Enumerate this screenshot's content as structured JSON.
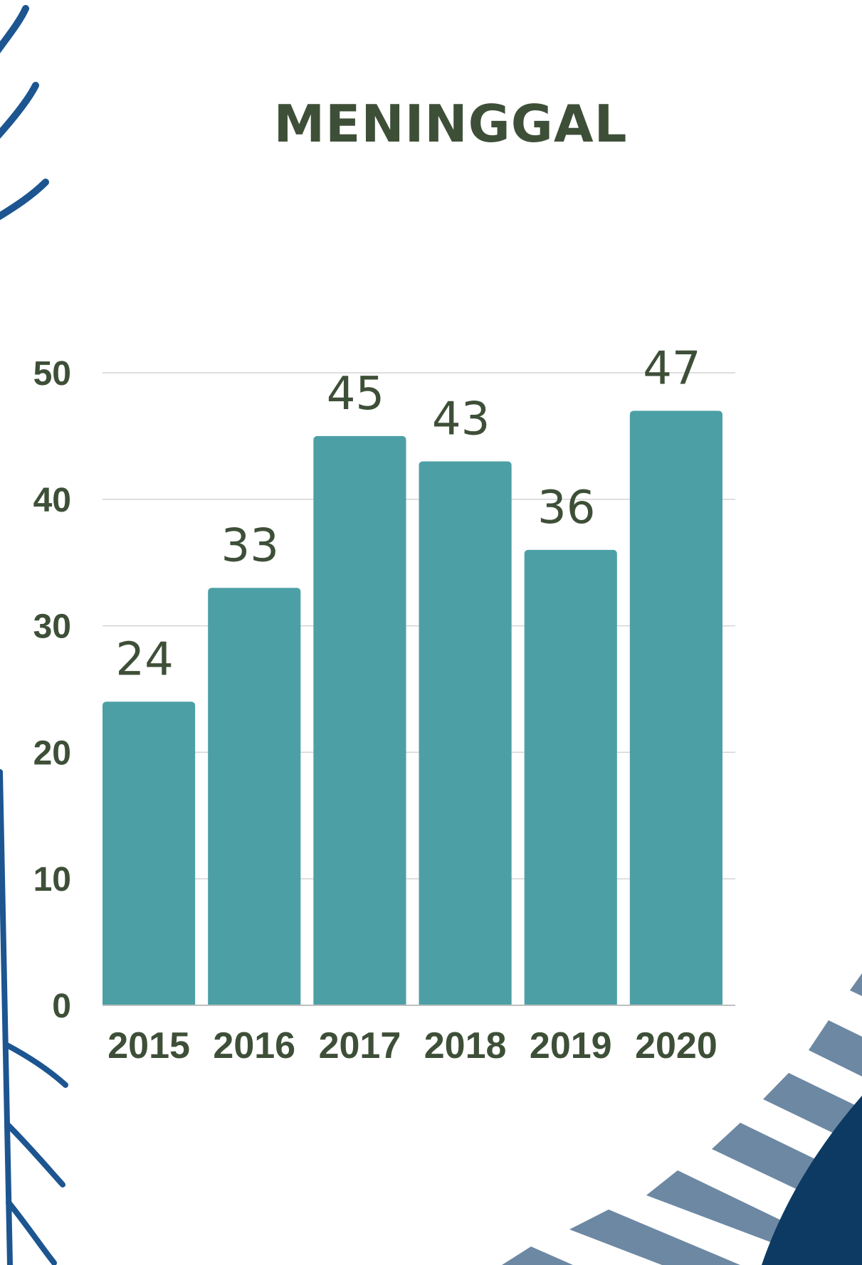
{
  "chart_data": {
    "type": "bar",
    "title": "MENINGGAL",
    "categories": [
      "2015",
      "2016",
      "2017",
      "2018",
      "2019",
      "2020"
    ],
    "values": [
      24,
      33,
      45,
      43,
      36,
      47
    ],
    "ylim": [
      0,
      50
    ],
    "yticks": [
      "0",
      "10",
      "20",
      "30",
      "40",
      "50"
    ],
    "grid": true,
    "legend": "none"
  },
  "colors": {
    "bar": "#4ca0a5",
    "text": "#3e4f38",
    "grid": "#d4d4d4",
    "decor_blue": "#1c5590",
    "decor_navy": "#0d3a63",
    "decor_stripe": "#6d88a3"
  }
}
